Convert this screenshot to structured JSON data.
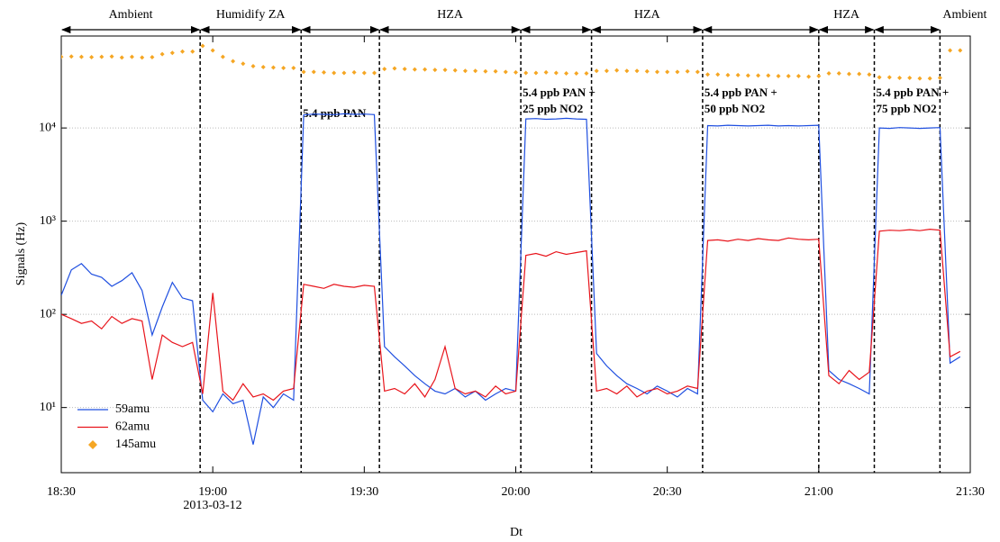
{
  "chart_data": {
    "type": "line",
    "log_y": true,
    "legend": "lower left",
    "xlabel": "Dt",
    "ylabel": "Signals (Hz)",
    "x_date_label": "2013-03-12",
    "xlim": [
      "18:30",
      "21:30"
    ],
    "xticks": [
      "18:30",
      "19:00",
      "19:30",
      "20:00",
      "20:30",
      "21:00",
      "21:30"
    ],
    "ylim": [
      2,
      97000
    ],
    "yticks": [
      {
        "value": 10,
        "label": "10¹"
      },
      {
        "value": 100,
        "label": "10²"
      },
      {
        "value": 1000,
        "label": "10³"
      },
      {
        "value": 10000,
        "label": "10⁴"
      }
    ],
    "grid": true,
    "dividers": [
      "18:57:30",
      "19:17:30",
      "19:33",
      "20:01",
      "20:15",
      "20:37",
      "21:00",
      "21:11",
      "21:24"
    ],
    "phases": [
      "Ambient",
      "Humidify ZA",
      null,
      "HZA",
      null,
      "HZA",
      null,
      "HZA",
      null,
      "Ambient"
    ],
    "annotations": [
      [
        "5.4 ppb PAN"
      ],
      [
        "5.4 ppb PAN +",
        "25 ppb NO2"
      ],
      [
        "5.4 ppb PAN +",
        "50 ppb NO2"
      ],
      [
        "5.4 ppb PAN +",
        "75 ppb NO2"
      ]
    ],
    "x": [
      "18:30",
      "18:32",
      "18:34",
      "18:36",
      "18:38",
      "18:40",
      "18:42",
      "18:44",
      "18:46",
      "18:48",
      "18:50",
      "18:52",
      "18:54",
      "18:56",
      "18:58",
      "19:00",
      "19:02",
      "19:04",
      "19:06",
      "19:08",
      "19:10",
      "19:12",
      "19:14",
      "19:16",
      "19:18",
      "19:20",
      "19:22",
      "19:24",
      "19:26",
      "19:28",
      "19:30",
      "19:32",
      "19:34",
      "19:36",
      "19:38",
      "19:40",
      "19:42",
      "19:44",
      "19:46",
      "19:48",
      "19:50",
      "19:52",
      "19:54",
      "19:56",
      "19:58",
      "20:00",
      "20:02",
      "20:04",
      "20:06",
      "20:08",
      "20:10",
      "20:12",
      "20:14",
      "20:16",
      "20:18",
      "20:20",
      "20:22",
      "20:24",
      "20:26",
      "20:28",
      "20:30",
      "20:32",
      "20:34",
      "20:36",
      "20:38",
      "20:40",
      "20:42",
      "20:44",
      "20:46",
      "20:48",
      "20:50",
      "20:52",
      "20:54",
      "20:56",
      "20:58",
      "21:00",
      "21:02",
      "21:04",
      "21:06",
      "21:08",
      "21:10",
      "21:12",
      "21:14",
      "21:16",
      "21:18",
      "21:20",
      "21:22",
      "21:24",
      "21:26",
      "21:28"
    ],
    "series": [
      {
        "name": "59amu",
        "color": "#1f4fe0",
        "marker": "line",
        "values": [
          160,
          300,
          350,
          270,
          250,
          200,
          230,
          280,
          180,
          60,
          120,
          220,
          150,
          140,
          12,
          9,
          14,
          11,
          12,
          4,
          13,
          10,
          14,
          12,
          13800,
          14100,
          14000,
          13900,
          14200,
          14000,
          14100,
          13900,
          45,
          35,
          28,
          22,
          18,
          15,
          14,
          16,
          13,
          15,
          12,
          14,
          16,
          15,
          12500,
          12600,
          12400,
          12500,
          12700,
          12500,
          12400,
          38,
          28,
          22,
          18,
          16,
          14,
          17,
          15,
          13,
          16,
          14,
          10600,
          10500,
          10700,
          10600,
          10500,
          10600,
          10700,
          10500,
          10600,
          10500,
          10600,
          10700,
          25,
          20,
          18,
          16,
          14,
          10000,
          9900,
          10100,
          10000,
          9900,
          10000,
          10100,
          30,
          35
        ]
      },
      {
        "name": "62amu",
        "color": "#e8141b",
        "marker": "line",
        "values": [
          100,
          90,
          80,
          85,
          70,
          95,
          80,
          90,
          85,
          20,
          60,
          50,
          45,
          50,
          14,
          170,
          15,
          12,
          18,
          13,
          14,
          12,
          15,
          16,
          210,
          200,
          190,
          210,
          200,
          195,
          205,
          200,
          15,
          16,
          14,
          18,
          13,
          20,
          45,
          16,
          14,
          15,
          13,
          17,
          14,
          15,
          430,
          450,
          420,
          470,
          440,
          460,
          480,
          15,
          16,
          14,
          17,
          13,
          15,
          16,
          14,
          15,
          17,
          16,
          620,
          630,
          610,
          640,
          620,
          650,
          630,
          620,
          660,
          640,
          630,
          640,
          22,
          18,
          25,
          20,
          24,
          780,
          800,
          790,
          810,
          790,
          820,
          800,
          35,
          40
        ]
      },
      {
        "name": "145amu",
        "color": "#f5a623",
        "marker": "diamond",
        "values": [
          58000,
          58500,
          58000,
          57500,
          58000,
          58500,
          57000,
          58000,
          57000,
          57500,
          62000,
          64000,
          66000,
          66000,
          76000,
          68000,
          58000,
          52000,
          49000,
          46000,
          45000,
          44500,
          44000,
          44000,
          40000,
          40000,
          39500,
          39000,
          39000,
          39500,
          39000,
          39000,
          43000,
          43500,
          43000,
          42500,
          42500,
          42000,
          42000,
          41500,
          41000,
          41000,
          40500,
          40500,
          40000,
          39500,
          39000,
          39000,
          39500,
          39000,
          38500,
          38500,
          38500,
          41000,
          41000,
          41500,
          41000,
          41000,
          40500,
          40000,
          40000,
          40000,
          40500,
          40000,
          37500,
          37500,
          37000,
          37000,
          36500,
          36500,
          36500,
          36000,
          36000,
          36000,
          35500,
          36000,
          38500,
          38500,
          38000,
          38000,
          37500,
          35000,
          35000,
          34500,
          34500,
          34000,
          34000,
          34500,
          68000,
          68000
        ]
      }
    ]
  }
}
